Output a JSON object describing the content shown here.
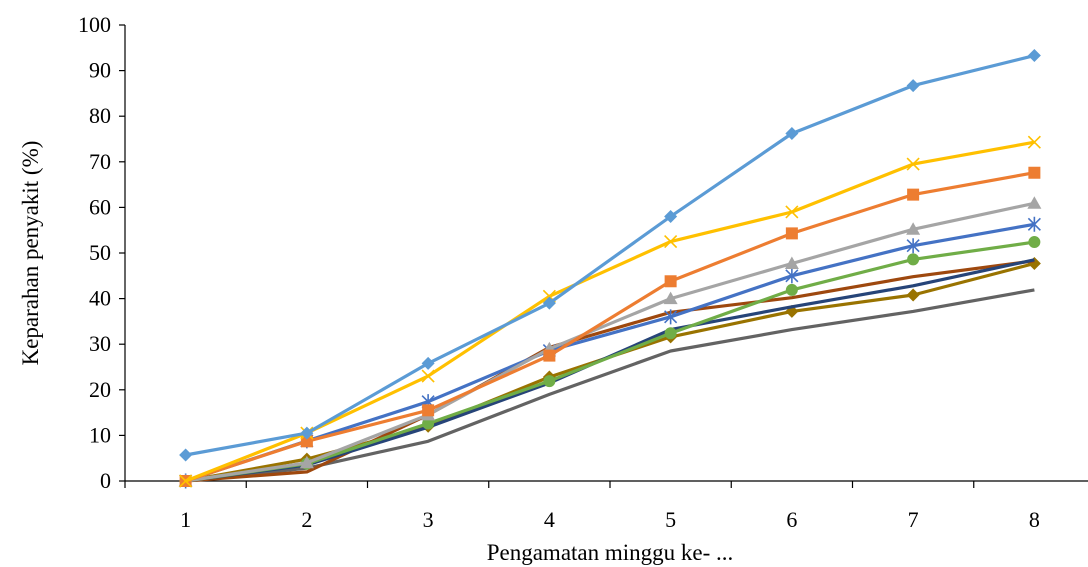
{
  "chart_data": {
    "type": "line",
    "title": "",
    "xlabel": "Pengamatan minggu ke- ...",
    "ylabel": "Keparahan penyakit  (%)",
    "x": [
      1,
      2,
      3,
      4,
      5,
      6,
      7,
      8
    ],
    "x_tick_labels": [
      "1",
      "2",
      "3",
      "4",
      "5",
      "6",
      "7",
      "8"
    ],
    "ylim": [
      0,
      100
    ],
    "y_ticks": [
      0,
      10,
      20,
      30,
      40,
      50,
      60,
      70,
      80,
      90,
      100
    ],
    "grid": false,
    "legend": "none",
    "series": [
      {
        "color": "#5B9BD5",
        "marker": "diamond",
        "values": [
          5.7,
          10.5,
          25.8,
          39,
          58,
          76.2,
          86.7,
          93.3
        ]
      },
      {
        "color": "#FFC000",
        "marker": "x",
        "values": [
          0,
          10.5,
          23,
          40.5,
          52.5,
          59,
          69.5,
          74.3
        ]
      },
      {
        "color": "#ED7D31",
        "marker": "square",
        "values": [
          0,
          8.7,
          15.5,
          27.5,
          43.8,
          54.3,
          62.8,
          67.6
        ]
      },
      {
        "color": "#A5A5A5",
        "marker": "triangle",
        "values": [
          0,
          4,
          14.5,
          29,
          40,
          47.7,
          55.2,
          60.9
        ]
      },
      {
        "color": "#4472C4",
        "marker": "star",
        "values": [
          0,
          8.8,
          17.4,
          28.6,
          36,
          45,
          51.6,
          56.3
        ]
      },
      {
        "color": "#70AD47",
        "marker": "circle",
        "values": [
          0,
          3.8,
          12.6,
          21.9,
          32.4,
          41.9,
          48.6,
          52.4
        ]
      },
      {
        "color": "#264478",
        "marker": "none",
        "values": [
          0,
          3.5,
          11.8,
          21.5,
          33.2,
          38.2,
          42.8,
          48.5
        ]
      },
      {
        "color": "#9E480E",
        "marker": "none",
        "values": [
          0,
          2,
          14.5,
          29.3,
          37,
          40.2,
          44.8,
          48.3
        ]
      },
      {
        "color": "#997300",
        "marker": "diamond",
        "values": [
          0,
          4.8,
          12,
          22.8,
          31.6,
          37.2,
          40.8,
          47.7
        ]
      },
      {
        "color": "#636363",
        "marker": "none",
        "values": [
          0,
          2.8,
          8.7,
          19,
          28.5,
          33.2,
          37.2,
          41.9
        ]
      }
    ]
  }
}
